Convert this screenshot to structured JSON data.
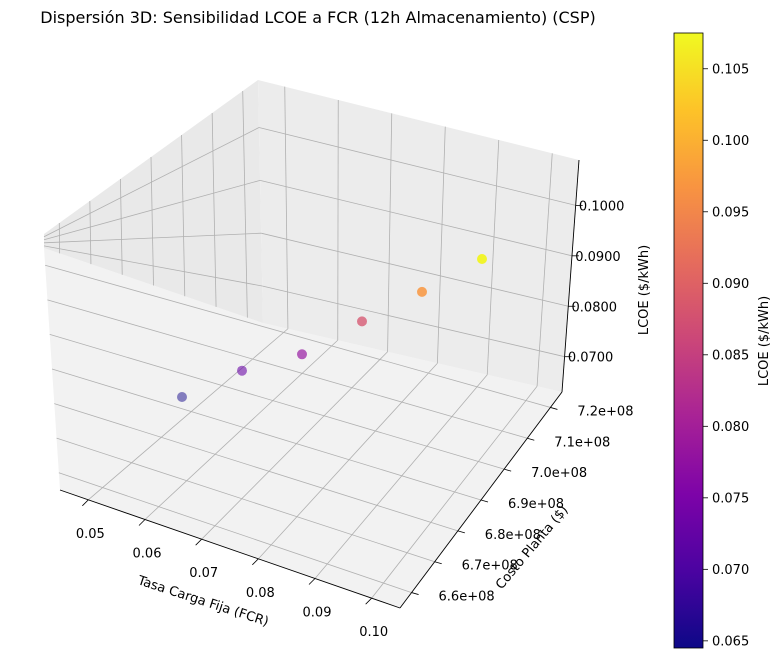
{
  "chart_data": {
    "type": "scatter",
    "projection": "3d",
    "title": "Dispersión 3D: Sensibilidad LCOE a FCR (12h Almacenamiento) (CSP)",
    "xlabel": "Tasa Carga Fija (FCR)",
    "ylabel": "Costo Planta ($)",
    "zlabel": "LCOE ($/kWh)",
    "x_ticks": [
      "0.05",
      "0.06",
      "0.07",
      "0.08",
      "0.09",
      "0.10"
    ],
    "y_ticks": [
      "6.6e+08",
      "6.7e+08",
      "6.8e+08",
      "6.9e+08",
      "7.0e+08",
      "7.1e+08",
      "7.2e+08"
    ],
    "z_ticks": [
      "0.0700",
      "0.0800",
      "0.0900",
      "0.1000"
    ],
    "xlim": [
      0.045,
      0.105
    ],
    "ylim": [
      655000000.0,
      725000000.0
    ],
    "zlim": [
      0.063,
      0.109
    ],
    "grid": true,
    "colormap": "plasma",
    "points": [
      {
        "x": 0.05,
        "y": 690000000.0,
        "z": 0.065
      },
      {
        "x": 0.06,
        "y": 690000000.0,
        "z": 0.073
      },
      {
        "x": 0.07,
        "y": 690000000.0,
        "z": 0.078
      },
      {
        "x": 0.08,
        "y": 690000000.0,
        "z": 0.088
      },
      {
        "x": 0.09,
        "y": 690000000.0,
        "z": 0.097
      },
      {
        "x": 0.1,
        "y": 690000000.0,
        "z": 0.107
      }
    ],
    "colorbar": {
      "label": "LCOE ($/kWh)",
      "range": [
        0.0645,
        0.1075
      ],
      "ticks": [
        "0.065",
        "0.070",
        "0.075",
        "0.080",
        "0.085",
        "0.090",
        "0.095",
        "0.100",
        "0.105"
      ]
    }
  }
}
